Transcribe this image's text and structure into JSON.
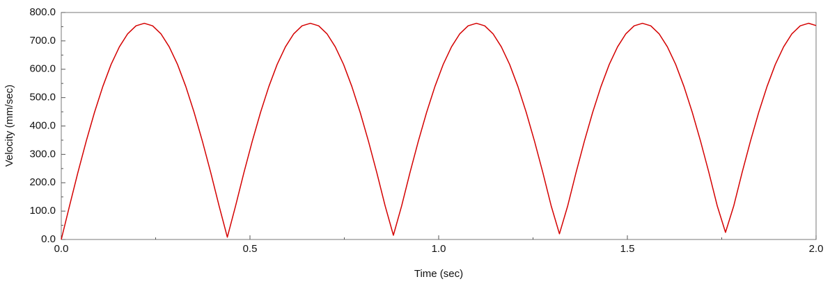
{
  "chart_data": {
    "type": "line",
    "xlabel": "Time (sec)",
    "ylabel": "Velocity (mm/sec)",
    "color": "#d40000",
    "xlim": [
      0,
      2.0
    ],
    "xticks": [
      {
        "value": 0,
        "label": "0.0"
      },
      {
        "value": 0.5,
        "label": "0.5"
      },
      {
        "value": 1.0,
        "label": "1.0"
      },
      {
        "value": 1.5,
        "label": "1.5"
      },
      {
        "value": 2.0,
        "label": "2.0"
      }
    ],
    "xminorticks": [
      0.25,
      0.75,
      1.25,
      1.75
    ],
    "ylim": [
      0,
      800
    ],
    "yticks": [
      {
        "value": 0,
        "label": "0.0"
      },
      {
        "value": 100,
        "label": "100.0"
      },
      {
        "value": 200,
        "label": "200.0"
      },
      {
        "value": 300,
        "label": "300.0"
      },
      {
        "value": 400,
        "label": "400.0"
      },
      {
        "value": 500,
        "label": "500.0"
      },
      {
        "value": 600,
        "label": "600.0"
      },
      {
        "value": 700,
        "label": "700.0"
      },
      {
        "value": 800,
        "label": "800.0"
      }
    ],
    "yminorticks": [
      50,
      150,
      250,
      350,
      450,
      550,
      650,
      750
    ],
    "x": [
      0,
      0.022,
      0.044,
      0.066,
      0.088,
      0.11,
      0.132,
      0.154,
      0.176,
      0.198,
      0.22,
      0.242,
      0.264,
      0.286,
      0.308,
      0.33,
      0.352,
      0.374,
      0.396,
      0.418,
      0.44,
      0.462,
      0.484,
      0.506,
      0.528,
      0.55,
      0.572,
      0.594,
      0.616,
      0.638,
      0.66,
      0.682,
      0.704,
      0.726,
      0.748,
      0.77,
      0.792,
      0.814,
      0.836,
      0.858,
      0.88,
      0.902,
      0.924,
      0.946,
      0.968,
      0.99,
      1.012,
      1.034,
      1.056,
      1.078,
      1.1,
      1.122,
      1.144,
      1.166,
      1.188,
      1.21,
      1.232,
      1.254,
      1.276,
      1.298,
      1.32,
      1.342,
      1.364,
      1.386,
      1.408,
      1.43,
      1.452,
      1.474,
      1.496,
      1.518,
      1.54,
      1.562,
      1.584,
      1.606,
      1.628,
      1.65,
      1.672,
      1.694,
      1.716,
      1.738,
      1.76,
      1.782,
      1.804,
      1.826,
      1.848,
      1.87,
      1.892,
      1.914,
      1.936,
      1.958,
      1.98,
      2.0
    ],
    "values": [
      0,
      119,
      236,
      346,
      448,
      539,
      617,
      679,
      725,
      753,
      762,
      753,
      725,
      679,
      617,
      539,
      448,
      346,
      236,
      119,
      8,
      119,
      236,
      346,
      448,
      539,
      617,
      679,
      725,
      753,
      762,
      753,
      725,
      679,
      617,
      539,
      448,
      346,
      236,
      119,
      15,
      119,
      236,
      346,
      448,
      539,
      617,
      679,
      725,
      753,
      762,
      753,
      725,
      679,
      617,
      539,
      448,
      346,
      236,
      119,
      20,
      119,
      236,
      346,
      448,
      539,
      617,
      679,
      725,
      753,
      762,
      753,
      725,
      679,
      617,
      539,
      448,
      346,
      236,
      119,
      25,
      119,
      236,
      346,
      448,
      539,
      617,
      679,
      725,
      753,
      762,
      754
    ]
  }
}
